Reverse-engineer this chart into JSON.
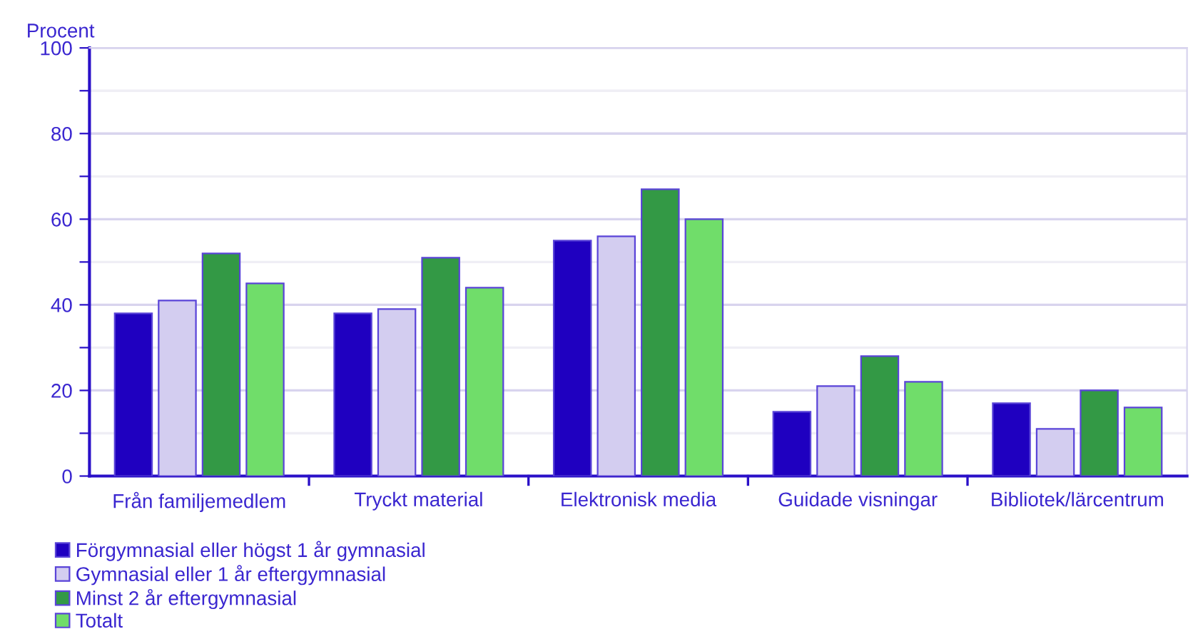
{
  "chart_data": {
    "type": "bar",
    "ylabel": "Procent",
    "categories": [
      "Från familjemedlem",
      "Tryckt material",
      "Elektronisk media",
      "Guidade visningar",
      "Bibliotek/lärcentrum"
    ],
    "series": [
      {
        "name": "Förgymnasial eller högst 1 år gymnasial",
        "color": "#1f00c0",
        "values": [
          38,
          38,
          55,
          15,
          17
        ]
      },
      {
        "name": "Gymnasial eller 1 år eftergymnasial",
        "color": "#d3cdf0",
        "values": [
          41,
          39,
          56,
          21,
          11
        ]
      },
      {
        "name": "Minst 2 år eftergymnasial",
        "color": "#339945",
        "values": [
          52,
          51,
          67,
          28,
          20
        ]
      },
      {
        "name": "Totalt",
        "color": "#70dd6a",
        "values": [
          45,
          44,
          60,
          22,
          16
        ]
      }
    ],
    "ylim": [
      0,
      100
    ],
    "yticks": [
      0,
      {
        "value": 10,
        "label": null
      },
      20,
      {
        "value": 30,
        "label": null
      },
      40,
      {
        "value": 50,
        "label": null
      },
      60,
      {
        "value": 70,
        "label": null
      },
      80,
      {
        "value": 90,
        "label": null
      },
      100
    ],
    "grid": "y",
    "legend": "bottom left"
  }
}
